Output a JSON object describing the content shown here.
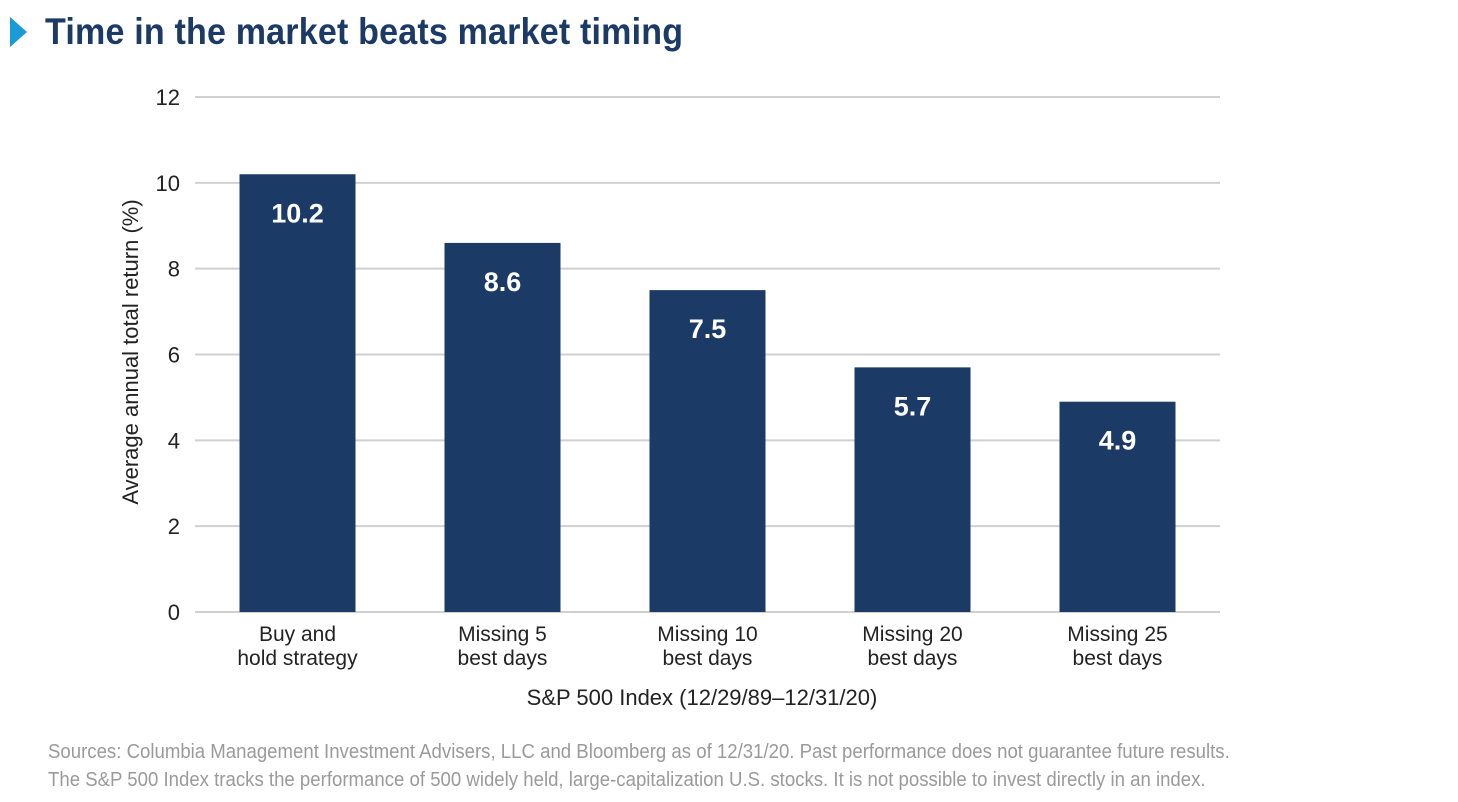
{
  "title": "Time in the market beats market timing",
  "colors": {
    "bar": "#1b3a66",
    "title": "#1b3a66",
    "marker": "#1a9ad6",
    "grid": "#d0d0d0",
    "note": "#9a9a9a",
    "label": "#ffffff"
  },
  "chart_data": {
    "type": "bar",
    "title": "Time in the market beats market timing",
    "categories": [
      [
        "Buy and",
        "hold strategy"
      ],
      [
        "Missing 5",
        "best days"
      ],
      [
        "Missing 10",
        "best days"
      ],
      [
        "Missing 20",
        "best days"
      ],
      [
        "Missing 25",
        "best days"
      ]
    ],
    "values": [
      10.2,
      8.6,
      7.5,
      5.7,
      4.9
    ],
    "data_labels": [
      "10.2",
      "8.6",
      "7.5",
      "5.7",
      "4.9"
    ],
    "ylabel": "Average annual total return (%)",
    "xlabel": "S&P 500 Index (12/29/89–12/31/20)",
    "ylim": [
      0,
      12
    ],
    "yticks": [
      0,
      2,
      4,
      6,
      8,
      10,
      12
    ],
    "grid": true
  },
  "notes": [
    "Sources: Columbia Management Investment Advisers, LLC and Bloomberg as of 12/31/20. Past performance does not guarantee future results.",
    "The S&P 500 Index tracks the performance of 500 widely held, large-capitalization U.S. stocks. It is not possible to invest directly in an index."
  ]
}
